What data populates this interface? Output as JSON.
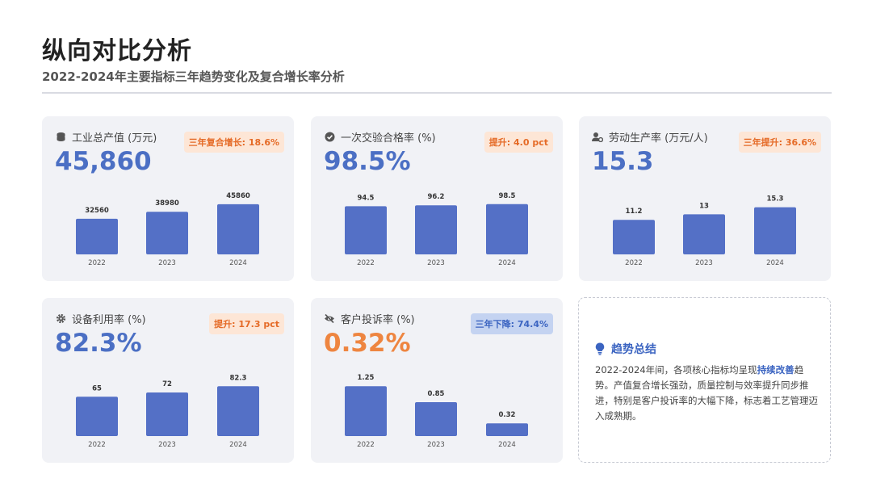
{
  "header": {
    "title": "纵向对比分析",
    "subtitle": "2022-2024年主要指标三年趋势变化及复合增长率分析"
  },
  "colors": {
    "bar": "#5470c6",
    "value_blue": "#4b6fc4",
    "value_orange": "#ee8540",
    "badge_up_bg": "#fde6d6",
    "badge_up_text": "#e56a26",
    "badge_down_bg": "#c4d3f1",
    "badge_down_text": "#3b64c1"
  },
  "cards": [
    {
      "icon": "coins-icon",
      "label": "工业总产值 (万元)",
      "value": "45,860",
      "badge": "三年复合增长: 18.6%",
      "badge_kind": "up"
    },
    {
      "icon": "check-circle-icon",
      "label": "一次交验合格率 (%)",
      "value": "98.5%",
      "badge": "提升: 4.0 pct",
      "badge_kind": "up"
    },
    {
      "icon": "user-gear-icon",
      "label": "劳动生产率 (万元/人)",
      "value": "15.3",
      "badge": "三年提升: 36.6%",
      "badge_kind": "up"
    },
    {
      "icon": "gear-icon",
      "label": "设备利用率 (%)",
      "value": "82.3%",
      "badge": "提升: 17.3 pct",
      "badge_kind": "up"
    },
    {
      "icon": "eye-slash-icon",
      "label": "客户投诉率 (%)",
      "value": "0.32%",
      "badge": "三年下降: 74.4%",
      "badge_kind": "down"
    }
  ],
  "chart_data": [
    {
      "type": "bar",
      "title": "工业总产值 (万元)",
      "categories": [
        "2022",
        "2023",
        "2024"
      ],
      "values": [
        32560,
        38980,
        45860
      ],
      "ylim": [
        0,
        62000
      ],
      "grid": false
    },
    {
      "type": "bar",
      "title": "一次交验合格率 (%)",
      "categories": [
        "2022",
        "2023",
        "2024"
      ],
      "values": [
        94.5,
        96.2,
        98.5
      ],
      "ylim": [
        0,
        133
      ],
      "grid": false
    },
    {
      "type": "bar",
      "title": "劳动生产率 (万元/人)",
      "categories": [
        "2022",
        "2023",
        "2024"
      ],
      "values": [
        11.2,
        13,
        15.3
      ],
      "ylim": [
        0,
        22
      ],
      "grid": false
    },
    {
      "type": "bar",
      "title": "设备利用率 (%)",
      "categories": [
        "2022",
        "2023",
        "2024"
      ],
      "values": [
        65,
        72,
        82.3
      ],
      "ylim": [
        0,
        112
      ],
      "grid": false
    },
    {
      "type": "bar",
      "title": "客户投诉率 (%)",
      "categories": [
        "2022",
        "2023",
        "2024"
      ],
      "values": [
        1.25,
        0.85,
        0.32
      ],
      "ylim": [
        0,
        1.7
      ],
      "grid": false
    }
  ],
  "summary": {
    "icon": "lightbulb-icon",
    "title": "趋势总结",
    "text_before": "2022-2024年间，各项核心指标均呈现",
    "highlight": "持续改善",
    "text_after": "趋势。产值复合增长强劲，质量控制与效率提升同步推进，特别是客户投诉率的大幅下降，标志着工艺管理迈入成熟期。"
  }
}
